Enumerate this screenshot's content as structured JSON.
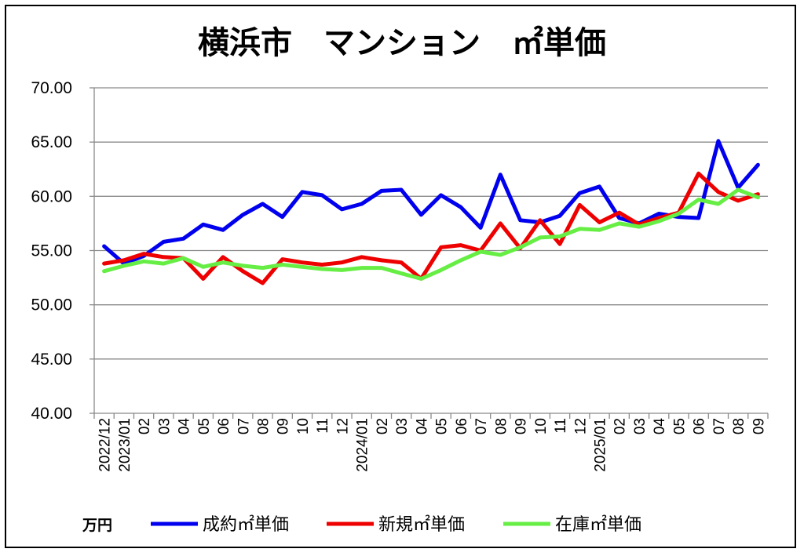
{
  "chart_data": {
    "type": "line",
    "title": "横浜市　マンション　㎡単価",
    "unit_label": "万円",
    "ylim": [
      40,
      70
    ],
    "y_ticks": [
      "40.00",
      "45.00",
      "50.00",
      "55.00",
      "60.00",
      "65.00",
      "70.00"
    ],
    "grid": true,
    "legend_position": "bottom",
    "categories": [
      "2022/12",
      "2023/01",
      "02",
      "03",
      "04",
      "05",
      "06",
      "07",
      "08",
      "09",
      "10",
      "11",
      "12",
      "2024/01",
      "02",
      "03",
      "04",
      "05",
      "06",
      "07",
      "08",
      "09",
      "10",
      "11",
      "12",
      "2025/01",
      "02",
      "03",
      "04",
      "05",
      "06",
      "07",
      "08",
      "09"
    ],
    "series": [
      {
        "name": "成約㎡単価",
        "color": "#0000ee",
        "values": [
          55.4,
          53.8,
          54.5,
          55.8,
          56.1,
          57.4,
          56.9,
          58.3,
          59.3,
          58.1,
          60.4,
          60.1,
          58.8,
          59.3,
          60.5,
          60.6,
          58.3,
          60.1,
          59.0,
          57.1,
          62.0,
          57.8,
          57.6,
          58.2,
          60.3,
          60.9,
          58.0,
          57.5,
          58.4,
          58.1,
          58.0,
          65.1,
          60.8,
          62.9
        ]
      },
      {
        "name": "新規㎡単価",
        "color": "#ee0000",
        "values": [
          53.8,
          54.1,
          54.7,
          54.4,
          54.3,
          52.4,
          54.4,
          53.1,
          52.0,
          54.2,
          53.9,
          53.7,
          53.9,
          54.4,
          54.1,
          53.9,
          52.4,
          55.3,
          55.5,
          55.0,
          57.5,
          55.2,
          57.8,
          55.6,
          59.2,
          57.6,
          58.5,
          57.4,
          58.0,
          58.5,
          62.1,
          60.4,
          59.6,
          60.2
        ]
      },
      {
        "name": "在庫㎡単価",
        "color": "#66ee44",
        "values": [
          53.1,
          53.6,
          54.0,
          53.8,
          54.3,
          53.5,
          53.9,
          53.6,
          53.4,
          53.7,
          53.5,
          53.3,
          53.2,
          53.4,
          53.4,
          52.9,
          52.4,
          53.2,
          54.1,
          54.9,
          54.6,
          55.3,
          56.2,
          56.3,
          57.0,
          56.9,
          57.5,
          57.2,
          57.7,
          58.4,
          59.7,
          59.3,
          60.6,
          59.9
        ]
      }
    ]
  }
}
